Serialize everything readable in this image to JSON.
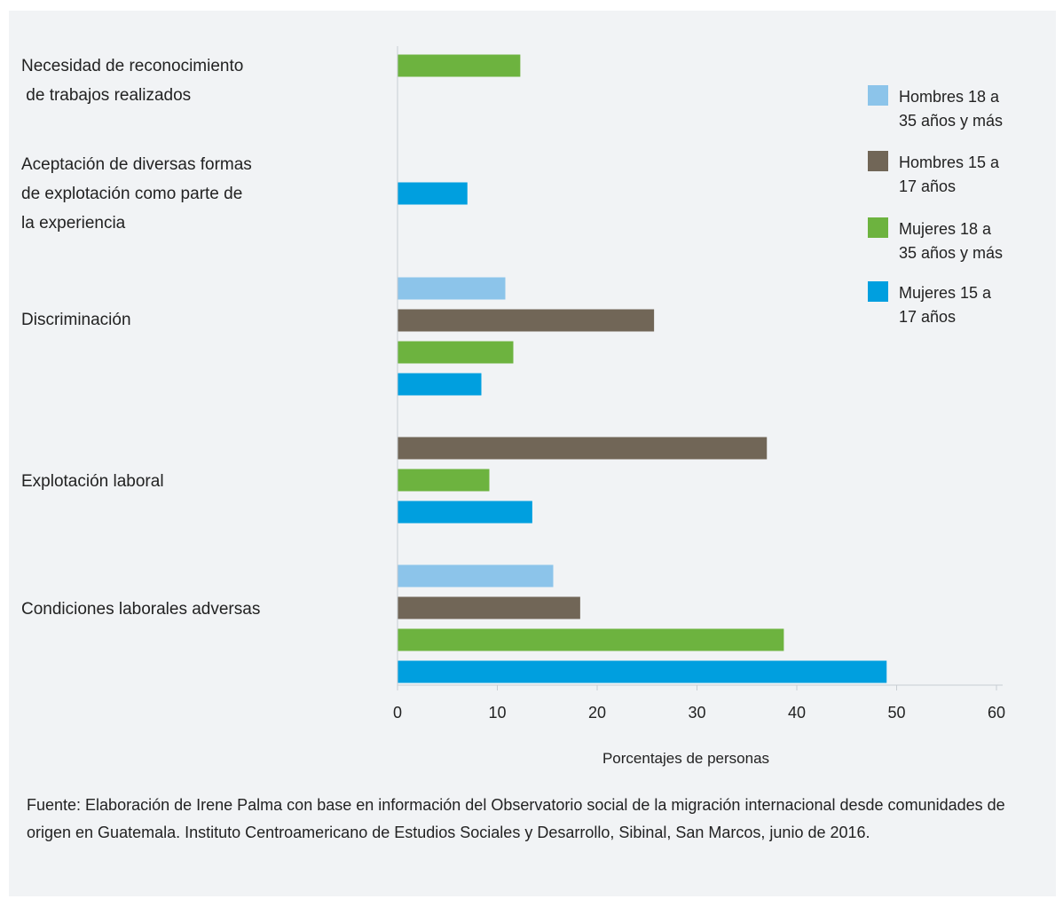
{
  "chart_data": {
    "type": "bar",
    "orientation": "horizontal",
    "categories": [
      [
        "Necesidad de reconocimiento",
        " de trabajos realizados"
      ],
      [
        "Aceptación de diversas formas",
        "de explotación como parte de",
        "la experiencia"
      ],
      [
        "Discriminación"
      ],
      [
        "Explotación laboral"
      ],
      [
        "Condiciones laborales adversas"
      ]
    ],
    "series": [
      {
        "name": [
          "Hombres 18 a",
          "35 años y más"
        ],
        "color": "#8cc4ea",
        "values": [
          null,
          null,
          10.8,
          null,
          15.6
        ]
      },
      {
        "name": [
          "Hombres 15 a",
          "17 años"
        ],
        "color": "#716657",
        "values": [
          null,
          null,
          25.7,
          37.0,
          18.3
        ]
      },
      {
        "name": [
          "Mujeres 18 a",
          "35 años y más"
        ],
        "color": "#6db33f",
        "values": [
          12.3,
          null,
          11.6,
          9.2,
          38.7
        ]
      },
      {
        "name": [
          "Mujeres 15 a",
          "17 años"
        ],
        "color": "#009fdf",
        "values": [
          null,
          7.0,
          8.4,
          13.5,
          49.0
        ]
      }
    ],
    "xlim": [
      0,
      60
    ],
    "xticks": [
      "0",
      "10",
      "20",
      "30",
      "40",
      "50",
      "60"
    ],
    "xlabel": "Porcentajes de personas",
    "legend": "top-right",
    "grid": false
  },
  "source": "Fuente: Elaboración de Irene Palma con base en información del Observatorio social de la migración internacional desde comunidades de origen en Guatemala. Instituto Centroamericano de Estudios Sociales y Desarrollo, Sibinal, San Marcos, junio de 2016."
}
